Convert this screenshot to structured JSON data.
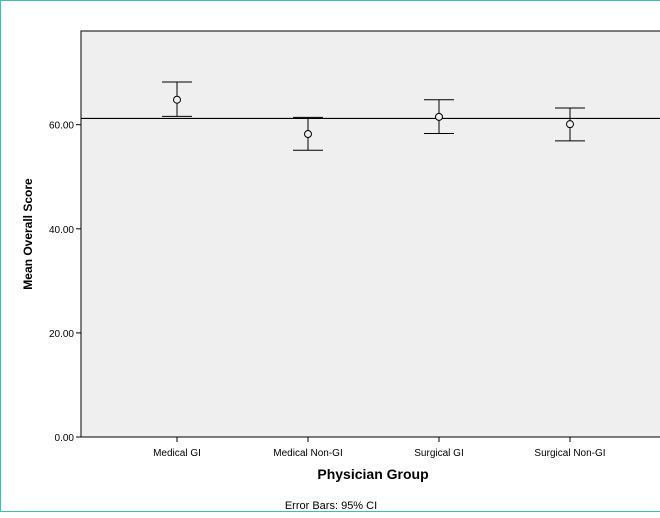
{
  "chart_data": {
    "type": "error_bar",
    "xlabel": "Physician Group",
    "ylabel": "Mean Overall Score",
    "footnote": "Error Bars: 95% CI",
    "categories": [
      "Medical GI",
      "Medical Non-GI",
      "Surgical GI",
      "Surgical Non-GI"
    ],
    "means": [
      64.8,
      58.2,
      61.5,
      60.1
    ],
    "ci_lower": [
      61.6,
      55.1,
      58.3,
      56.9
    ],
    "ci_upper": [
      68.2,
      61.4,
      64.8,
      63.2
    ],
    "reference_line": 61.2,
    "yticks": [
      "0.00",
      "20.00",
      "40.00",
      "60.00"
    ],
    "ytick_values": [
      0,
      20,
      40,
      60
    ],
    "ylim": [
      0,
      78
    ],
    "grid": false,
    "plot_background": "#efefef",
    "frame_color": "#3fbfae"
  }
}
